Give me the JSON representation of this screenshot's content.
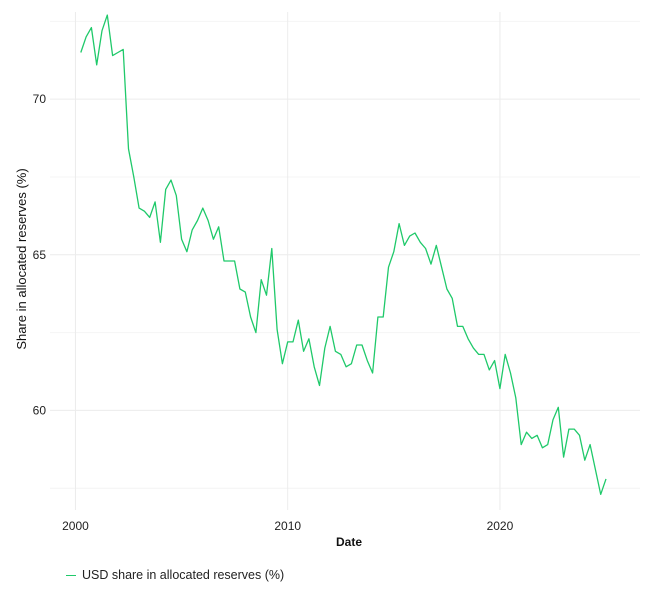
{
  "chart_data": {
    "type": "line",
    "title": "",
    "xlabel": "Date",
    "ylabel": "Share in allocated reserves (%)",
    "xlim": [
      1998.8,
      2026.6
    ],
    "ylim": [
      56.8,
      72.8
    ],
    "x_ticks": [
      2000,
      2010,
      2020
    ],
    "y_ticks": [
      60,
      65,
      70
    ],
    "y_minor_gridlines": [
      57.5,
      62.5,
      67.5,
      72.5
    ],
    "grid": true,
    "legend_position": "bottom-left",
    "series": [
      {
        "name": "USD share in allocated reserves (%)",
        "color": "#1fc96a",
        "points": [
          [
            2000.25,
            71.5
          ],
          [
            2000.5,
            72.0
          ],
          [
            2000.75,
            72.3
          ],
          [
            2001.0,
            71.1
          ],
          [
            2001.25,
            72.2
          ],
          [
            2001.5,
            72.7
          ],
          [
            2001.75,
            71.4
          ],
          [
            2002.0,
            71.5
          ],
          [
            2002.25,
            71.6
          ],
          [
            2002.5,
            68.4
          ],
          [
            2002.75,
            67.5
          ],
          [
            2003.0,
            66.5
          ],
          [
            2003.25,
            66.4
          ],
          [
            2003.5,
            66.2
          ],
          [
            2003.75,
            66.7
          ],
          [
            2004.0,
            65.4
          ],
          [
            2004.25,
            67.1
          ],
          [
            2004.5,
            67.4
          ],
          [
            2004.75,
            66.9
          ],
          [
            2005.0,
            65.5
          ],
          [
            2005.25,
            65.1
          ],
          [
            2005.5,
            65.8
          ],
          [
            2005.75,
            66.1
          ],
          [
            2006.0,
            66.5
          ],
          [
            2006.25,
            66.1
          ],
          [
            2006.5,
            65.5
          ],
          [
            2006.75,
            65.9
          ],
          [
            2007.0,
            64.8
          ],
          [
            2007.25,
            64.8
          ],
          [
            2007.5,
            64.8
          ],
          [
            2007.75,
            63.9
          ],
          [
            2008.0,
            63.8
          ],
          [
            2008.25,
            63.0
          ],
          [
            2008.5,
            62.5
          ],
          [
            2008.75,
            64.2
          ],
          [
            2009.0,
            63.7
          ],
          [
            2009.25,
            65.2
          ],
          [
            2009.5,
            62.6
          ],
          [
            2009.75,
            61.5
          ],
          [
            2010.0,
            62.2
          ],
          [
            2010.25,
            62.2
          ],
          [
            2010.5,
            62.9
          ],
          [
            2010.75,
            61.9
          ],
          [
            2011.0,
            62.3
          ],
          [
            2011.25,
            61.4
          ],
          [
            2011.5,
            60.8
          ],
          [
            2011.75,
            62.0
          ],
          [
            2012.0,
            62.7
          ],
          [
            2012.25,
            61.9
          ],
          [
            2012.5,
            61.8
          ],
          [
            2012.75,
            61.4
          ],
          [
            2013.0,
            61.5
          ],
          [
            2013.25,
            62.1
          ],
          [
            2013.5,
            62.1
          ],
          [
            2013.75,
            61.6
          ],
          [
            2014.0,
            61.2
          ],
          [
            2014.25,
            63.0
          ],
          [
            2014.5,
            63.0
          ],
          [
            2014.75,
            64.6
          ],
          [
            2015.0,
            65.1
          ],
          [
            2015.25,
            66.0
          ],
          [
            2015.5,
            65.3
          ],
          [
            2015.75,
            65.6
          ],
          [
            2016.0,
            65.7
          ],
          [
            2016.25,
            65.4
          ],
          [
            2016.5,
            65.2
          ],
          [
            2016.75,
            64.7
          ],
          [
            2017.0,
            65.3
          ],
          [
            2017.25,
            64.6
          ],
          [
            2017.5,
            63.9
          ],
          [
            2017.75,
            63.6
          ],
          [
            2018.0,
            62.7
          ],
          [
            2018.25,
            62.7
          ],
          [
            2018.5,
            62.3
          ],
          [
            2018.75,
            62.0
          ],
          [
            2019.0,
            61.8
          ],
          [
            2019.25,
            61.8
          ],
          [
            2019.5,
            61.3
          ],
          [
            2019.75,
            61.6
          ],
          [
            2020.0,
            60.7
          ],
          [
            2020.25,
            61.8
          ],
          [
            2020.5,
            61.2
          ],
          [
            2020.75,
            60.4
          ],
          [
            2021.0,
            58.9
          ],
          [
            2021.25,
            59.3
          ],
          [
            2021.5,
            59.1
          ],
          [
            2021.75,
            59.2
          ],
          [
            2022.0,
            58.8
          ],
          [
            2022.25,
            58.9
          ],
          [
            2022.5,
            59.7
          ],
          [
            2022.75,
            60.1
          ],
          [
            2023.0,
            58.5
          ],
          [
            2023.25,
            59.4
          ],
          [
            2023.5,
            59.4
          ],
          [
            2023.75,
            59.2
          ],
          [
            2024.0,
            58.4
          ],
          [
            2024.25,
            58.9
          ],
          [
            2024.5,
            58.1
          ],
          [
            2024.75,
            57.3
          ],
          [
            2025.0,
            57.8
          ]
        ]
      }
    ]
  }
}
